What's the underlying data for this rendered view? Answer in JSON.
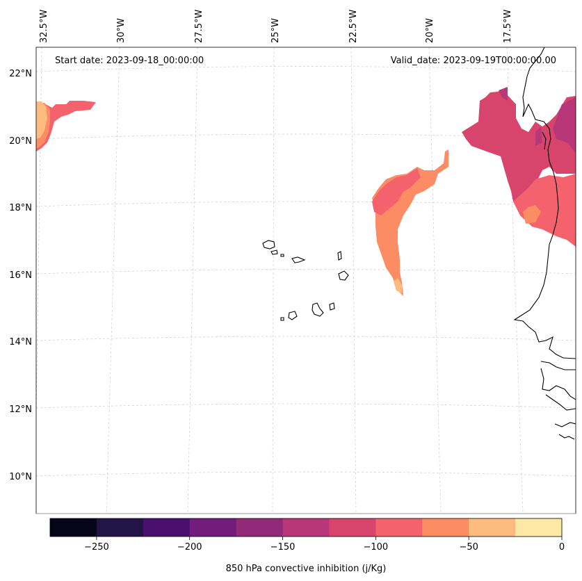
{
  "header": {
    "start_date": "Start date: 2023-09-18_00:00:00",
    "valid_date": "Valid_date: 2023-09-19T00:00:00.00"
  },
  "longitude_labels": [
    "32.5°W",
    "30°W",
    "27.5°W",
    "25°W",
    "22.5°W",
    "20°W",
    "17.5°W"
  ],
  "latitude_labels": [
    "22°N",
    "20°N",
    "18°N",
    "16°N",
    "14°N",
    "12°N",
    "10°N"
  ],
  "colorbar": {
    "label": "850 hPa convective inhibition (j/Kg)",
    "tick_labels": [
      "−250",
      "−200",
      "−150",
      "−100",
      "−50",
      "0"
    ],
    "colors": [
      "#06051a",
      "#211447",
      "#4b0f6e",
      "#721c7b",
      "#922a7a",
      "#b73779",
      "#d8456c",
      "#f3626d",
      "#fb8c63",
      "#febb80",
      "#fde8a6"
    ]
  },
  "fill_colors": {
    "minus_137": "#d8456c",
    "minus_162": "#b73779",
    "minus_112": "#f3626d",
    "minus_87": "#fb8c63",
    "minus_62": "#febb80"
  }
}
